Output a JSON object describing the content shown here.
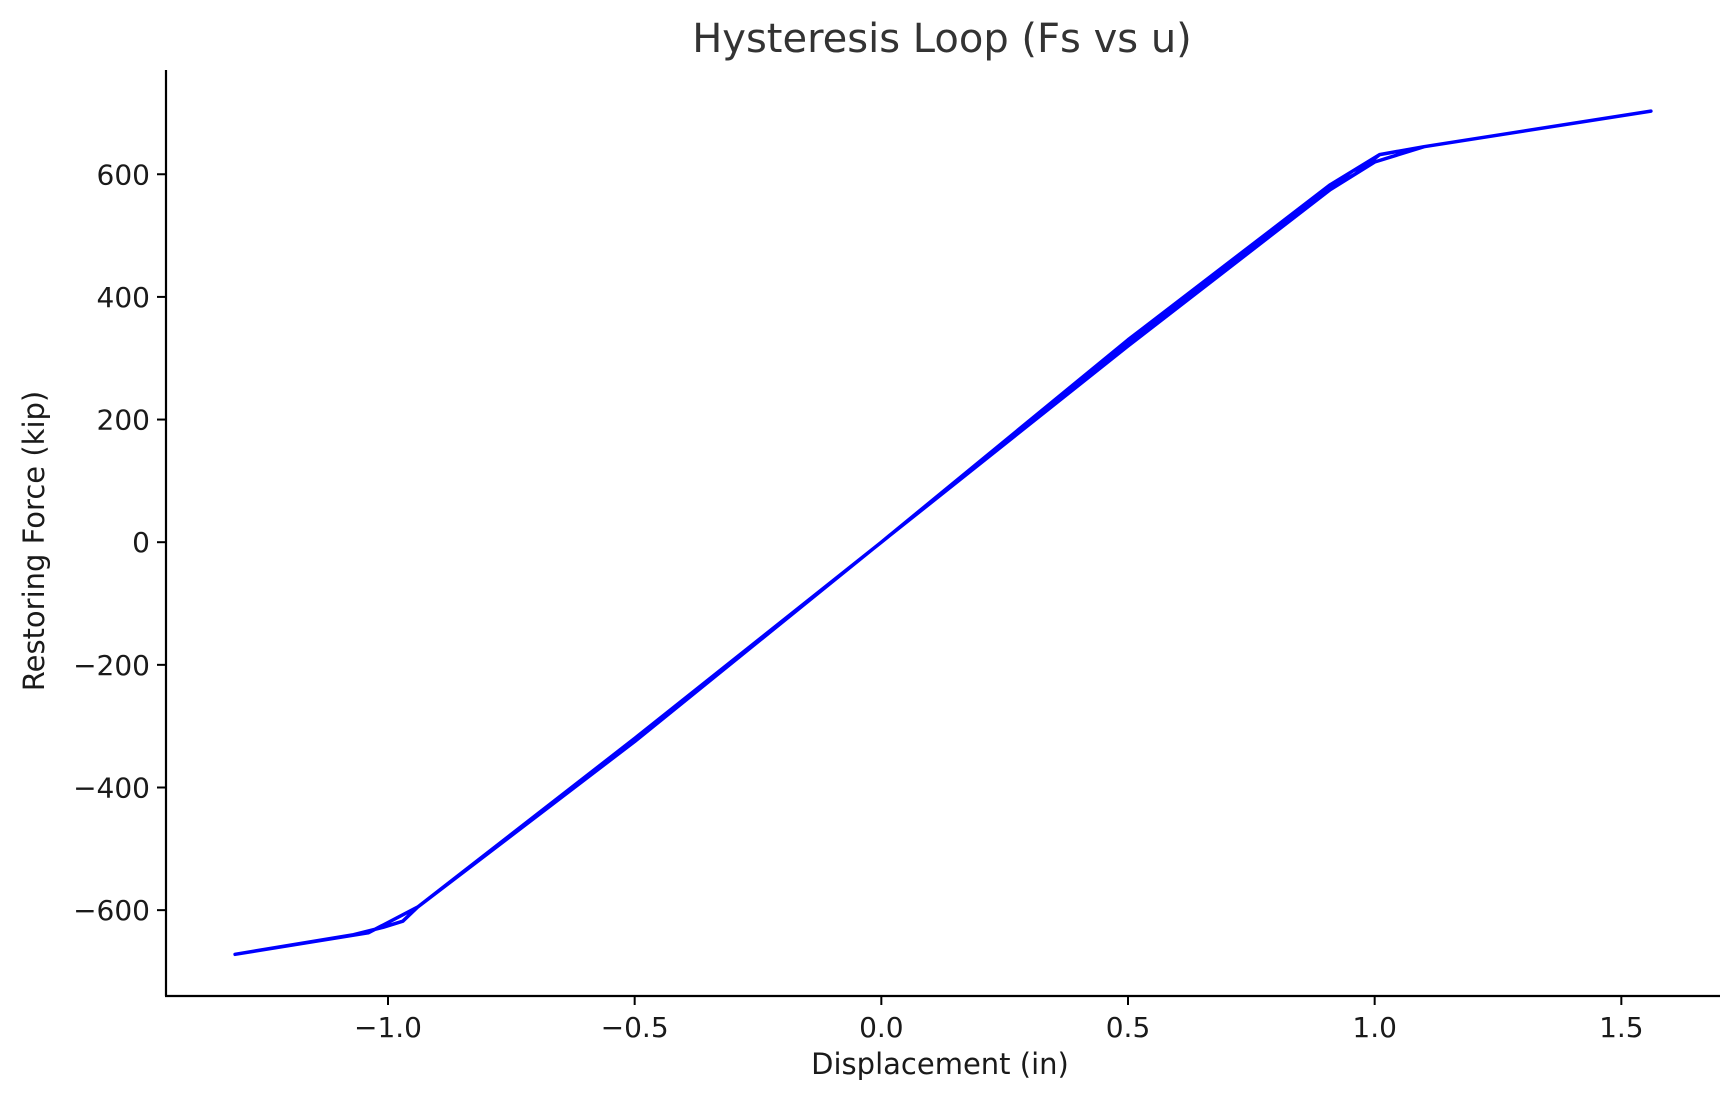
{
  "chart_data": {
    "type": "line",
    "title": "Hysteresis Loop (Fs vs u)",
    "xlabel": "Displacement (in)",
    "ylabel": "Restoring Force (kip)",
    "xlim": [
      -1.45,
      1.7
    ],
    "ylim": [
      -740,
      770
    ],
    "x_ticks": [
      -1.0,
      -0.5,
      0.0,
      0.5,
      1.0,
      1.5
    ],
    "x_tick_labels": [
      "−1.0",
      "−0.5",
      "0.0",
      "0.5",
      "1.0",
      "1.5"
    ],
    "y_ticks": [
      -600,
      -400,
      -200,
      0,
      200,
      400,
      600
    ],
    "y_tick_labels": [
      "−600",
      "−400",
      "−200",
      "0",
      "200",
      "400",
      "600"
    ],
    "grid": false,
    "series": [
      {
        "color": "#0000ff",
        "x": [
          0.0,
          0.5,
          0.91,
          1.01,
          1.1,
          1.56,
          1.1,
          1.0,
          0.91,
          0.5,
          0.0,
          -0.5,
          -0.94,
          -1.04,
          -1.31,
          -1.07,
          -1.01,
          -0.97,
          -0.94,
          -0.5,
          0.0,
          0.5,
          0.92,
          0.96,
          1.01,
          1.1,
          1.56
        ],
        "y": [
          0.0,
          330,
          583,
          632,
          645,
          703,
          645,
          620,
          575,
          320,
          0.0,
          -320,
          -595,
          -637,
          -672,
          -640,
          -628,
          -618,
          -595,
          -325,
          0.0,
          325,
          583,
          600,
          632,
          645,
          703
        ]
      }
    ]
  }
}
